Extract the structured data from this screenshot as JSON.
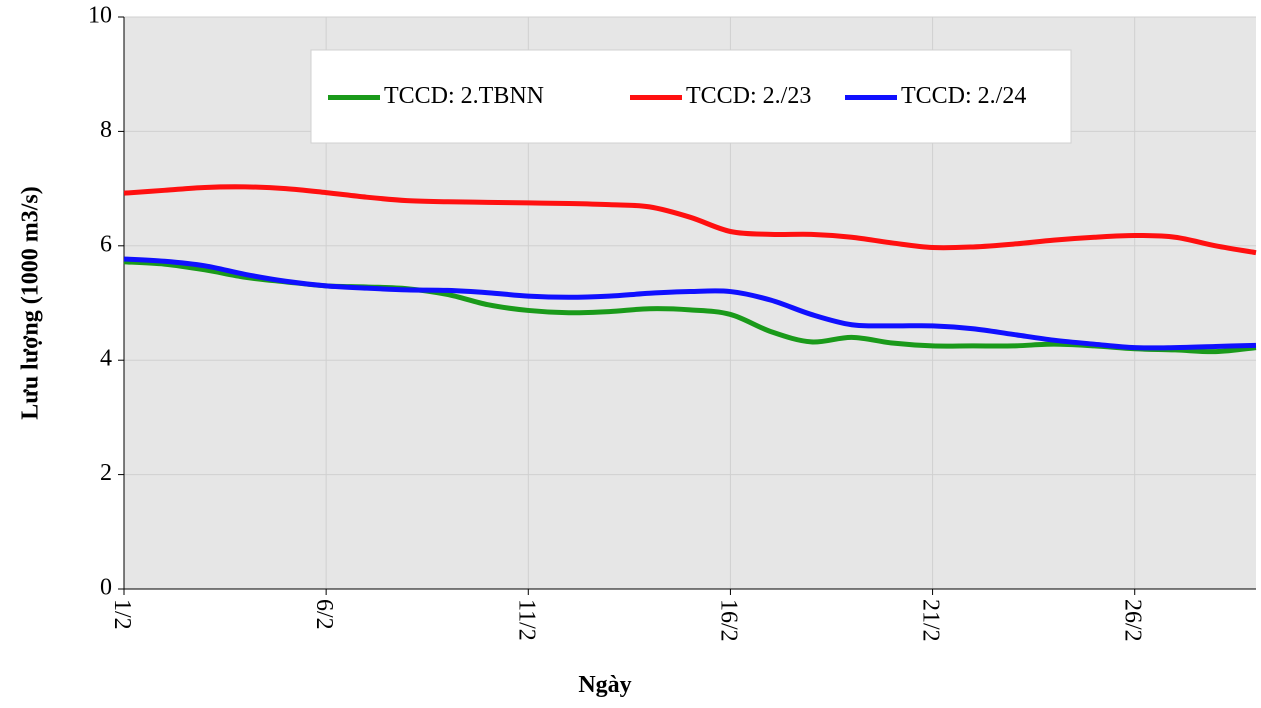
{
  "chart_data": {
    "type": "line",
    "x_label": "Ngày",
    "y_label": "Lưu lượng (1000 m3/s)",
    "categories": [
      "1/2",
      null,
      null,
      null,
      null,
      "6/2",
      null,
      null,
      null,
      null,
      "11/2",
      null,
      null,
      null,
      null,
      "16/2",
      null,
      null,
      null,
      null,
      "21/2",
      null,
      null,
      null,
      null,
      "26/2",
      null,
      null,
      null
    ],
    "series": [
      {
        "name": "TCCD: 2.TBNN",
        "color": "#1a9a1a",
        "values": [
          5.72,
          5.68,
          5.58,
          5.45,
          5.37,
          5.3,
          5.28,
          5.25,
          5.15,
          4.97,
          4.87,
          4.83,
          4.85,
          4.9,
          4.88,
          4.8,
          4.5,
          4.32,
          4.4,
          4.3,
          4.25,
          4.25,
          4.25,
          4.28,
          4.25,
          4.2,
          4.18,
          4.15,
          4.22
        ]
      },
      {
        "name": "TCCD: 2./23",
        "color": "#ff1010",
        "values": [
          6.92,
          6.97,
          7.02,
          7.03,
          7.0,
          6.93,
          6.85,
          6.79,
          6.77,
          6.76,
          6.75,
          6.74,
          6.72,
          6.68,
          6.5,
          6.25,
          6.2,
          6.2,
          6.15,
          6.05,
          5.97,
          5.98,
          6.03,
          6.1,
          6.15,
          6.18,
          6.15,
          6.0,
          5.88
        ]
      },
      {
        "name": "TCCD: 2./24",
        "color": "#1010ff",
        "values": [
          5.77,
          5.73,
          5.65,
          5.5,
          5.38,
          5.3,
          5.26,
          5.23,
          5.22,
          5.18,
          5.12,
          5.1,
          5.12,
          5.17,
          5.2,
          5.2,
          5.05,
          4.8,
          4.62,
          4.6,
          4.6,
          4.55,
          4.45,
          4.35,
          4.28,
          4.22,
          4.22,
          4.24,
          4.26
        ]
      }
    ],
    "ylim": [
      0,
      10
    ],
    "yticks": [
      0,
      2,
      4,
      6,
      8,
      10
    ],
    "grid": true,
    "legend": "top"
  }
}
